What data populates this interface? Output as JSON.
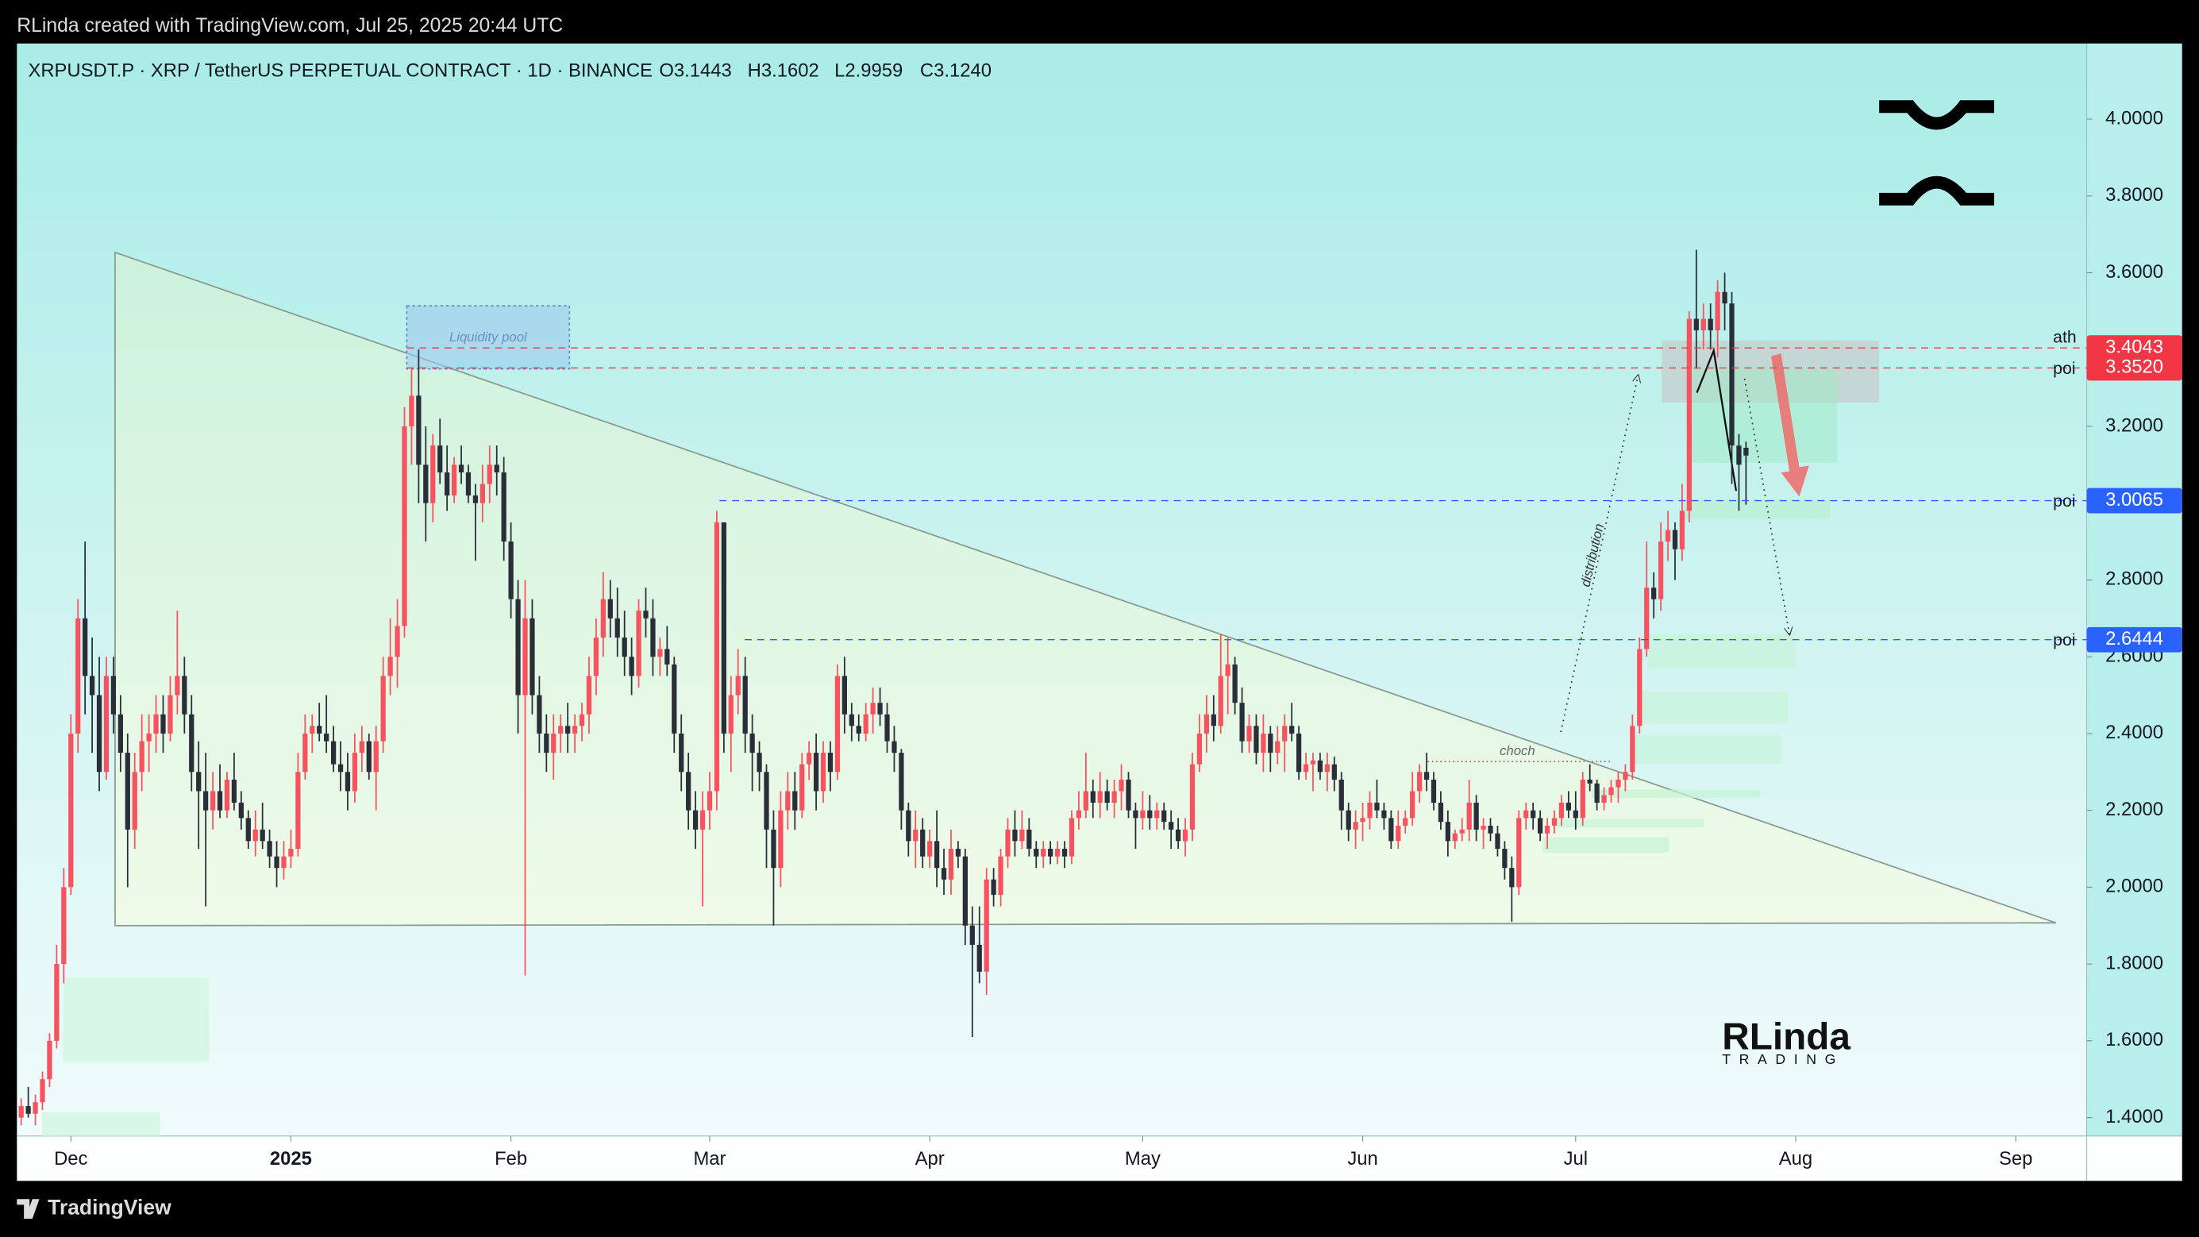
{
  "chart_data": {
    "type": "candlestick",
    "credit": "RLinda created with TradingView.com, Jul 25, 2025 20:44 UTC",
    "title": "XRPUSDT.P · XRP / TetherUS PERPETUAL CONTRACT · 1D · BINANCE",
    "legend_ohlc": [
      "O3.1443",
      "H3.1602",
      "L2.9959",
      "C3.1240"
    ],
    "footer": "TradingView",
    "watermark": [
      "RLinda",
      "TRADING"
    ],
    "annotations": [
      "Liquidity pool",
      "choch",
      "distribution"
    ],
    "up_color": "#f7525f",
    "down_color": "#2a2e39",
    "xlim": [
      -0.6,
      291
    ],
    "xticks": [
      {
        "value": 7,
        "label": "Dec"
      },
      {
        "value": 38,
        "label": "2025"
      },
      {
        "value": 69,
        "label": "Feb"
      },
      {
        "value": 97,
        "label": "Mar"
      },
      {
        "value": 128,
        "label": "Apr"
      },
      {
        "value": 158,
        "label": "May"
      },
      {
        "value": 189,
        "label": "Jun"
      },
      {
        "value": 219,
        "label": "Jul"
      },
      {
        "value": 250,
        "label": "Aug"
      },
      {
        "value": 281,
        "label": "Sep"
      }
    ],
    "ylim": [
      1.352,
      4.197
    ],
    "yticks": [
      {
        "value": 1.4,
        "label": "1.4000"
      },
      {
        "value": 1.6,
        "label": "1.6000"
      },
      {
        "value": 1.8,
        "label": "1.8000"
      },
      {
        "value": 2,
        "label": "2.0000"
      },
      {
        "value": 2.2,
        "label": "2.2000"
      },
      {
        "value": 2.4,
        "label": "2.4000"
      },
      {
        "value": 2.6,
        "label": "2.6000"
      },
      {
        "value": 2.8,
        "label": "2.8000"
      },
      {
        "value": 3,
        "label": "3.0000"
      },
      {
        "value": 3.2,
        "label": "3.2000"
      },
      {
        "value": 3.4,
        "label": "3.4000"
      },
      {
        "value": 3.6,
        "label": "3.6000"
      },
      {
        "value": 3.8,
        "label": "3.8000"
      },
      {
        "value": 4,
        "label": "4.0000"
      }
    ],
    "levels": [
      {
        "price": 3.4043,
        "tag": "ath",
        "color": "#f23645"
      },
      {
        "price": 3.352,
        "label": "3.3520",
        "tag": "poi",
        "color": "#f23645"
      },
      {
        "price": 3.0065,
        "tag": "poi",
        "color": "#2962ff"
      },
      {
        "price": 2.6444,
        "tag": "poi",
        "color": "#2962ff"
      }
    ],
    "ohlc": [
      [
        1.4,
        1.45,
        1.38,
        1.43
      ],
      [
        1.43,
        1.48,
        1.4,
        1.41
      ],
      [
        1.41,
        1.46,
        1.38,
        1.44
      ],
      [
        1.44,
        1.52,
        1.42,
        1.5
      ],
      [
        1.5,
        1.62,
        1.48,
        1.6
      ],
      [
        1.6,
        1.85,
        1.58,
        1.8
      ],
      [
        1.8,
        2.05,
        1.75,
        2.0
      ],
      [
        2.0,
        2.45,
        1.98,
        2.4
      ],
      [
        2.4,
        2.75,
        2.35,
        2.7
      ],
      [
        2.7,
        2.9,
        2.45,
        2.55
      ],
      [
        2.55,
        2.65,
        2.35,
        2.5
      ],
      [
        2.5,
        2.6,
        2.25,
        2.3
      ],
      [
        2.3,
        2.6,
        2.28,
        2.55
      ],
      [
        2.55,
        2.6,
        2.4,
        2.45
      ],
      [
        2.45,
        2.5,
        2.3,
        2.35
      ],
      [
        2.35,
        2.4,
        2.0,
        2.15
      ],
      [
        2.15,
        2.35,
        2.1,
        2.3
      ],
      [
        2.3,
        2.45,
        2.25,
        2.38
      ],
      [
        2.38,
        2.45,
        2.3,
        2.4
      ],
      [
        2.4,
        2.5,
        2.35,
        2.45
      ],
      [
        2.45,
        2.5,
        2.35,
        2.4
      ],
      [
        2.4,
        2.55,
        2.38,
        2.5
      ],
      [
        2.5,
        2.72,
        2.45,
        2.55
      ],
      [
        2.55,
        2.6,
        2.4,
        2.45
      ],
      [
        2.45,
        2.5,
        2.25,
        2.3
      ],
      [
        2.3,
        2.38,
        2.1,
        2.25
      ],
      [
        2.25,
        2.35,
        1.95,
        2.2
      ],
      [
        2.2,
        2.3,
        2.15,
        2.25
      ],
      [
        2.25,
        2.32,
        2.18,
        2.2
      ],
      [
        2.2,
        2.3,
        2.18,
        2.28
      ],
      [
        2.28,
        2.35,
        2.2,
        2.22
      ],
      [
        2.22,
        2.25,
        2.15,
        2.18
      ],
      [
        2.18,
        2.2,
        2.1,
        2.12
      ],
      [
        2.12,
        2.2,
        2.08,
        2.15
      ],
      [
        2.15,
        2.22,
        2.1,
        2.12
      ],
      [
        2.12,
        2.15,
        2.05,
        2.08
      ],
      [
        2.08,
        2.12,
        2.0,
        2.05
      ],
      [
        2.05,
        2.12,
        2.02,
        2.08
      ],
      [
        2.08,
        2.15,
        2.05,
        2.1
      ],
      [
        2.1,
        2.35,
        2.08,
        2.3
      ],
      [
        2.3,
        2.45,
        2.28,
        2.4
      ],
      [
        2.4,
        2.45,
        2.35,
        2.42
      ],
      [
        2.42,
        2.48,
        2.38,
        2.4
      ],
      [
        2.4,
        2.5,
        2.35,
        2.38
      ],
      [
        2.38,
        2.42,
        2.3,
        2.32
      ],
      [
        2.32,
        2.38,
        2.25,
        2.3
      ],
      [
        2.3,
        2.35,
        2.2,
        2.25
      ],
      [
        2.25,
        2.4,
        2.22,
        2.35
      ],
      [
        2.35,
        2.42,
        2.3,
        2.38
      ],
      [
        2.38,
        2.4,
        2.28,
        2.3
      ],
      [
        2.3,
        2.42,
        2.2,
        2.38
      ],
      [
        2.38,
        2.6,
        2.35,
        2.55
      ],
      [
        2.55,
        2.7,
        2.5,
        2.6
      ],
      [
        2.6,
        2.75,
        2.52,
        2.68
      ],
      [
        2.68,
        3.25,
        2.65,
        3.2
      ],
      [
        3.2,
        3.35,
        3.1,
        3.28
      ],
      [
        3.28,
        3.4,
        3.0,
        3.1
      ],
      [
        3.1,
        3.2,
        2.9,
        3.0
      ],
      [
        3.0,
        3.18,
        2.95,
        3.15
      ],
      [
        3.15,
        3.22,
        3.05,
        3.08
      ],
      [
        3.08,
        3.15,
        2.98,
        3.02
      ],
      [
        3.02,
        3.12,
        3.0,
        3.1
      ],
      [
        3.1,
        3.15,
        3.05,
        3.08
      ],
      [
        3.08,
        3.1,
        3.0,
        3.02
      ],
      [
        3.02,
        3.05,
        2.85,
        3.0
      ],
      [
        3.0,
        3.1,
        2.95,
        3.05
      ],
      [
        3.05,
        3.15,
        3.0,
        3.1
      ],
      [
        3.1,
        3.15,
        3.02,
        3.08
      ],
      [
        3.08,
        3.12,
        2.85,
        2.9
      ],
      [
        2.9,
        2.95,
        2.7,
        2.75
      ],
      [
        2.75,
        2.8,
        2.4,
        2.5
      ],
      [
        2.5,
        2.8,
        1.77,
        2.7
      ],
      [
        2.7,
        2.75,
        2.45,
        2.5
      ],
      [
        2.5,
        2.55,
        2.35,
        2.4
      ],
      [
        2.4,
        2.45,
        2.3,
        2.35
      ],
      [
        2.35,
        2.45,
        2.28,
        2.4
      ],
      [
        2.4,
        2.45,
        2.35,
        2.42
      ],
      [
        2.42,
        2.48,
        2.35,
        2.4
      ],
      [
        2.4,
        2.45,
        2.35,
        2.42
      ],
      [
        2.42,
        2.48,
        2.38,
        2.45
      ],
      [
        2.45,
        2.6,
        2.4,
        2.55
      ],
      [
        2.55,
        2.7,
        2.5,
        2.65
      ],
      [
        2.65,
        2.82,
        2.6,
        2.75
      ],
      [
        2.75,
        2.8,
        2.65,
        2.7
      ],
      [
        2.7,
        2.78,
        2.6,
        2.65
      ],
      [
        2.65,
        2.72,
        2.55,
        2.6
      ],
      [
        2.6,
        2.65,
        2.5,
        2.55
      ],
      [
        2.55,
        2.75,
        2.52,
        2.72
      ],
      [
        2.72,
        2.78,
        2.65,
        2.7
      ],
      [
        2.7,
        2.75,
        2.55,
        2.6
      ],
      [
        2.6,
        2.65,
        2.55,
        2.62
      ],
      [
        2.62,
        2.68,
        2.55,
        2.58
      ],
      [
        2.58,
        2.6,
        2.35,
        2.4
      ],
      [
        2.4,
        2.45,
        2.25,
        2.3
      ],
      [
        2.3,
        2.35,
        2.15,
        2.2
      ],
      [
        2.2,
        2.25,
        2.1,
        2.15
      ],
      [
        2.15,
        2.25,
        1.95,
        2.2
      ],
      [
        2.2,
        2.3,
        2.15,
        2.25
      ],
      [
        2.25,
        2.98,
        2.2,
        2.95
      ],
      [
        2.95,
        2.95,
        2.35,
        2.4
      ],
      [
        2.4,
        2.55,
        2.3,
        2.5
      ],
      [
        2.5,
        2.62,
        2.45,
        2.55
      ],
      [
        2.55,
        2.6,
        2.35,
        2.4
      ],
      [
        2.4,
        2.45,
        2.25,
        2.35
      ],
      [
        2.35,
        2.38,
        2.25,
        2.3
      ],
      [
        2.3,
        2.32,
        2.05,
        2.15
      ],
      [
        2.15,
        2.2,
        1.9,
        2.05
      ],
      [
        2.05,
        2.25,
        2.0,
        2.2
      ],
      [
        2.2,
        2.3,
        2.15,
        2.25
      ],
      [
        2.25,
        2.3,
        2.15,
        2.2
      ],
      [
        2.2,
        2.35,
        2.18,
        2.32
      ],
      [
        2.32,
        2.38,
        2.28,
        2.35
      ],
      [
        2.35,
        2.4,
        2.2,
        2.25
      ],
      [
        2.25,
        2.38,
        2.22,
        2.35
      ],
      [
        2.35,
        2.38,
        2.25,
        2.3
      ],
      [
        2.3,
        2.58,
        2.28,
        2.55
      ],
      [
        2.55,
        2.6,
        2.4,
        2.45
      ],
      [
        2.45,
        2.48,
        2.38,
        2.42
      ],
      [
        2.42,
        2.45,
        2.38,
        2.4
      ],
      [
        2.4,
        2.48,
        2.38,
        2.45
      ],
      [
        2.45,
        2.52,
        2.4,
        2.48
      ],
      [
        2.48,
        2.52,
        2.42,
        2.45
      ],
      [
        2.45,
        2.48,
        2.35,
        2.38
      ],
      [
        2.38,
        2.42,
        2.3,
        2.35
      ],
      [
        2.35,
        2.36,
        2.15,
        2.2
      ],
      [
        2.2,
        2.22,
        2.08,
        2.12
      ],
      [
        2.12,
        2.2,
        2.05,
        2.15
      ],
      [
        2.15,
        2.18,
        2.05,
        2.08
      ],
      [
        2.08,
        2.15,
        2.05,
        2.12
      ],
      [
        2.12,
        2.2,
        2.0,
        2.05
      ],
      [
        2.05,
        2.1,
        1.98,
        2.02
      ],
      [
        2.02,
        2.15,
        1.98,
        2.1
      ],
      [
        2.1,
        2.12,
        2.05,
        2.08
      ],
      [
        2.08,
        2.1,
        1.85,
        1.9
      ],
      [
        1.9,
        1.95,
        1.61,
        1.85
      ],
      [
        1.85,
        1.95,
        1.75,
        1.78
      ],
      [
        1.78,
        2.05,
        1.72,
        2.02
      ],
      [
        2.02,
        2.05,
        1.95,
        1.98
      ],
      [
        1.98,
        2.1,
        1.95,
        2.08
      ],
      [
        2.08,
        2.18,
        2.05,
        2.15
      ],
      [
        2.15,
        2.2,
        2.08,
        2.12
      ],
      [
        2.12,
        2.2,
        2.1,
        2.15
      ],
      [
        2.15,
        2.18,
        2.08,
        2.1
      ],
      [
        2.1,
        2.12,
        2.05,
        2.08
      ],
      [
        2.08,
        2.12,
        2.05,
        2.1
      ],
      [
        2.1,
        2.12,
        2.06,
        2.08
      ],
      [
        2.08,
        2.12,
        2.06,
        2.1
      ],
      [
        2.1,
        2.12,
        2.05,
        2.08
      ],
      [
        2.08,
        2.2,
        2.06,
        2.18
      ],
      [
        2.18,
        2.25,
        2.15,
        2.2
      ],
      [
        2.2,
        2.35,
        2.18,
        2.25
      ],
      [
        2.25,
        2.28,
        2.18,
        2.22
      ],
      [
        2.22,
        2.3,
        2.18,
        2.25
      ],
      [
        2.25,
        2.28,
        2.2,
        2.22
      ],
      [
        2.22,
        2.28,
        2.18,
        2.25
      ],
      [
        2.25,
        2.32,
        2.2,
        2.28
      ],
      [
        2.28,
        2.3,
        2.18,
        2.2
      ],
      [
        2.2,
        2.22,
        2.1,
        2.18
      ],
      [
        2.18,
        2.25,
        2.15,
        2.2
      ],
      [
        2.2,
        2.24,
        2.15,
        2.18
      ],
      [
        2.18,
        2.22,
        2.15,
        2.2
      ],
      [
        2.2,
        2.22,
        2.15,
        2.17
      ],
      [
        2.17,
        2.2,
        2.1,
        2.15
      ],
      [
        2.15,
        2.18,
        2.1,
        2.12
      ],
      [
        2.12,
        2.18,
        2.08,
        2.15
      ],
      [
        2.15,
        2.35,
        2.12,
        2.32
      ],
      [
        2.32,
        2.45,
        2.3,
        2.4
      ],
      [
        2.4,
        2.5,
        2.35,
        2.45
      ],
      [
        2.45,
        2.5,
        2.38,
        2.42
      ],
      [
        2.42,
        2.66,
        2.4,
        2.55
      ],
      [
        2.55,
        2.65,
        2.45,
        2.58
      ],
      [
        2.58,
        2.6,
        2.45,
        2.48
      ],
      [
        2.48,
        2.52,
        2.35,
        2.38
      ],
      [
        2.38,
        2.45,
        2.35,
        2.42
      ],
      [
        2.42,
        2.45,
        2.32,
        2.35
      ],
      [
        2.35,
        2.45,
        2.3,
        2.4
      ],
      [
        2.4,
        2.42,
        2.3,
        2.35
      ],
      [
        2.35,
        2.42,
        2.32,
        2.38
      ],
      [
        2.38,
        2.45,
        2.3,
        2.42
      ],
      [
        2.42,
        2.48,
        2.38,
        2.4
      ],
      [
        2.4,
        2.42,
        2.28,
        2.3
      ],
      [
        2.3,
        2.35,
        2.28,
        2.32
      ],
      [
        2.32,
        2.35,
        2.25,
        2.33
      ],
      [
        2.33,
        2.35,
        2.28,
        2.3
      ],
      [
        2.3,
        2.35,
        2.25,
        2.32
      ],
      [
        2.32,
        2.34,
        2.25,
        2.28
      ],
      [
        2.28,
        2.3,
        2.15,
        2.2
      ],
      [
        2.2,
        2.22,
        2.12,
        2.15
      ],
      [
        2.15,
        2.2,
        2.1,
        2.17
      ],
      [
        2.17,
        2.22,
        2.12,
        2.18
      ],
      [
        2.18,
        2.25,
        2.15,
        2.22
      ],
      [
        2.22,
        2.28,
        2.18,
        2.2
      ],
      [
        2.2,
        2.22,
        2.15,
        2.18
      ],
      [
        2.18,
        2.2,
        2.1,
        2.12
      ],
      [
        2.12,
        2.2,
        2.1,
        2.16
      ],
      [
        2.16,
        2.2,
        2.14,
        2.18
      ],
      [
        2.18,
        2.3,
        2.16,
        2.25
      ],
      [
        2.25,
        2.32,
        2.22,
        2.3
      ],
      [
        2.3,
        2.35,
        2.25,
        2.28
      ],
      [
        2.28,
        2.3,
        2.2,
        2.22
      ],
      [
        2.22,
        2.25,
        2.15,
        2.17
      ],
      [
        2.17,
        2.2,
        2.08,
        2.12
      ],
      [
        2.12,
        2.15,
        2.1,
        2.14
      ],
      [
        2.14,
        2.18,
        2.12,
        2.15
      ],
      [
        2.15,
        2.28,
        2.12,
        2.22
      ],
      [
        2.22,
        2.24,
        2.12,
        2.15
      ],
      [
        2.15,
        2.18,
        2.1,
        2.16
      ],
      [
        2.16,
        2.18,
        2.12,
        2.14
      ],
      [
        2.14,
        2.16,
        2.08,
        2.1
      ],
      [
        2.1,
        2.12,
        2.02,
        2.05
      ],
      [
        2.05,
        2.08,
        1.91,
        2.0
      ],
      [
        2.0,
        2.2,
        1.98,
        2.18
      ],
      [
        2.18,
        2.22,
        2.15,
        2.2
      ],
      [
        2.2,
        2.22,
        2.15,
        2.18
      ],
      [
        2.18,
        2.2,
        2.12,
        2.14
      ],
      [
        2.14,
        2.18,
        2.1,
        2.16
      ],
      [
        2.16,
        2.2,
        2.14,
        2.18
      ],
      [
        2.18,
        2.24,
        2.16,
        2.22
      ],
      [
        2.22,
        2.25,
        2.18,
        2.2
      ],
      [
        2.2,
        2.25,
        2.15,
        2.18
      ],
      [
        2.18,
        2.3,
        2.16,
        2.28
      ],
      [
        2.28,
        2.32,
        2.25,
        2.27
      ],
      [
        2.27,
        2.28,
        2.2,
        2.22
      ],
      [
        2.22,
        2.26,
        2.2,
        2.24
      ],
      [
        2.24,
        2.28,
        2.22,
        2.26
      ],
      [
        2.26,
        2.3,
        2.22,
        2.28
      ],
      [
        2.28,
        2.32,
        2.25,
        2.3
      ],
      [
        2.3,
        2.45,
        2.28,
        2.42
      ],
      [
        2.42,
        2.65,
        2.4,
        2.62
      ],
      [
        2.62,
        2.9,
        2.6,
        2.78
      ],
      [
        2.78,
        2.82,
        2.7,
        2.75
      ],
      [
        2.75,
        2.95,
        2.72,
        2.9
      ],
      [
        2.9,
        2.98,
        2.85,
        2.93
      ],
      [
        2.93,
        2.95,
        2.8,
        2.88
      ],
      [
        2.88,
        3.05,
        2.85,
        2.98
      ],
      [
        2.98,
        3.5,
        2.95,
        3.48
      ],
      [
        3.48,
        3.66,
        3.35,
        3.45
      ],
      [
        3.45,
        3.52,
        3.4,
        3.48
      ],
      [
        3.48,
        3.52,
        3.4,
        3.45
      ],
      [
        3.45,
        3.58,
        3.38,
        3.55
      ],
      [
        3.55,
        3.6,
        3.45,
        3.52
      ],
      [
        3.52,
        3.55,
        3.05,
        3.15
      ],
      [
        3.15,
        3.18,
        2.98,
        3.1
      ],
      [
        3.1443,
        3.1602,
        2.9959,
        3.124
      ]
    ]
  }
}
